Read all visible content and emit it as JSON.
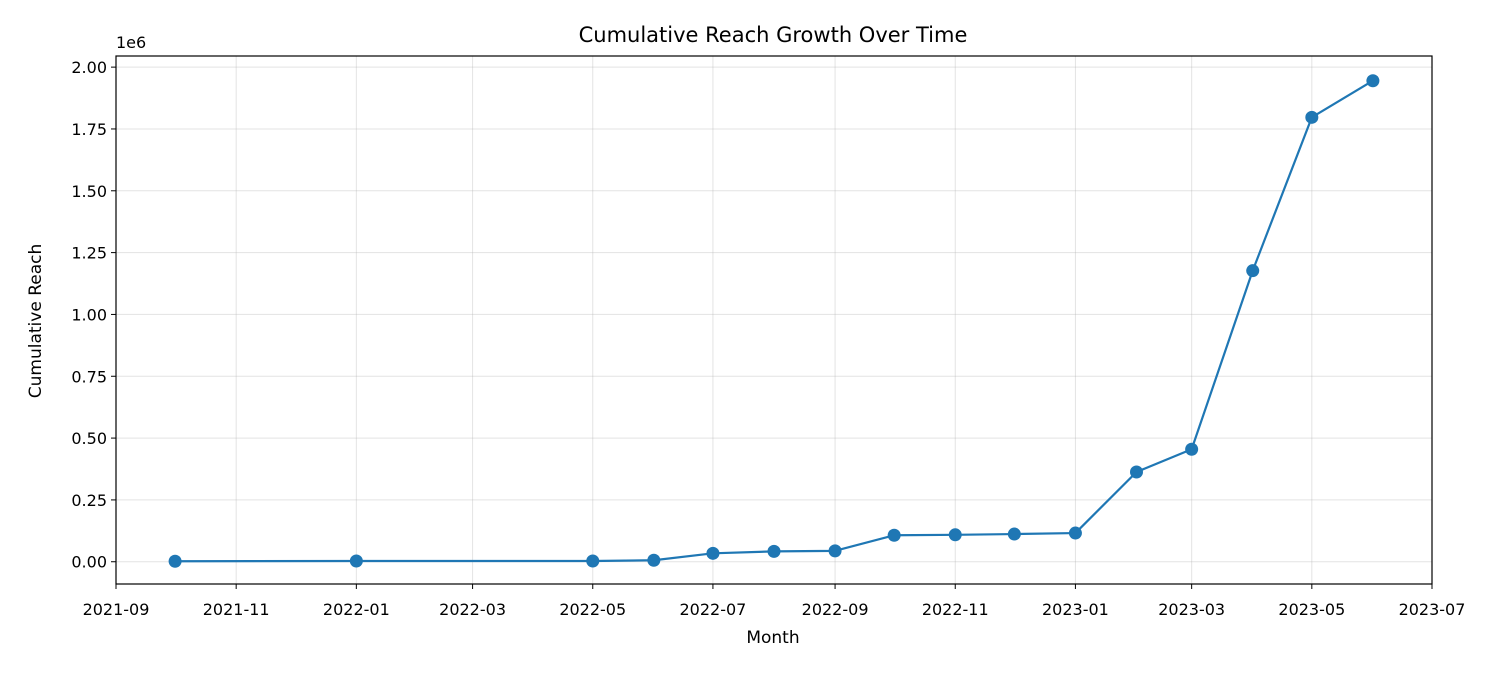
{
  "chart_data": {
    "type": "line",
    "title": "Cumulative Reach Growth Over Time",
    "xlabel": "Month",
    "ylabel": "Cumulative Reach",
    "y_offset_label": "1e6",
    "grid": true,
    "x_tick_labels": [
      "2021-09",
      "2021-11",
      "2022-01",
      "2022-03",
      "2022-05",
      "2022-07",
      "2022-09",
      "2022-11",
      "2023-01",
      "2023-03",
      "2023-05",
      "2023-07"
    ],
    "y_tick_labels": [
      "0.00",
      "0.25",
      "0.50",
      "0.75",
      "1.00",
      "1.25",
      "1.50",
      "1.75",
      "2.00"
    ],
    "xlim": [
      "2021-09-01",
      "2023-07-01"
    ],
    "ylim": [
      -90000,
      2045000
    ],
    "series": [
      {
        "color": "#1f77b4",
        "x": [
          "2021-10-01",
          "2022-01-01",
          "2022-05-01",
          "2022-06-01",
          "2022-07-01",
          "2022-08-01",
          "2022-09-01",
          "2022-10-01",
          "2022-11-01",
          "2022-12-01",
          "2023-01-01",
          "2023-02-01",
          "2023-03-01",
          "2023-04-01",
          "2023-05-01",
          "2023-06-01"
        ],
        "y": [
          2000,
          3000,
          3000,
          6000,
          34000,
          42000,
          44000,
          107000,
          109000,
          112000,
          116000,
          363000,
          455000,
          1177000,
          1797000,
          1945000
        ]
      }
    ]
  }
}
